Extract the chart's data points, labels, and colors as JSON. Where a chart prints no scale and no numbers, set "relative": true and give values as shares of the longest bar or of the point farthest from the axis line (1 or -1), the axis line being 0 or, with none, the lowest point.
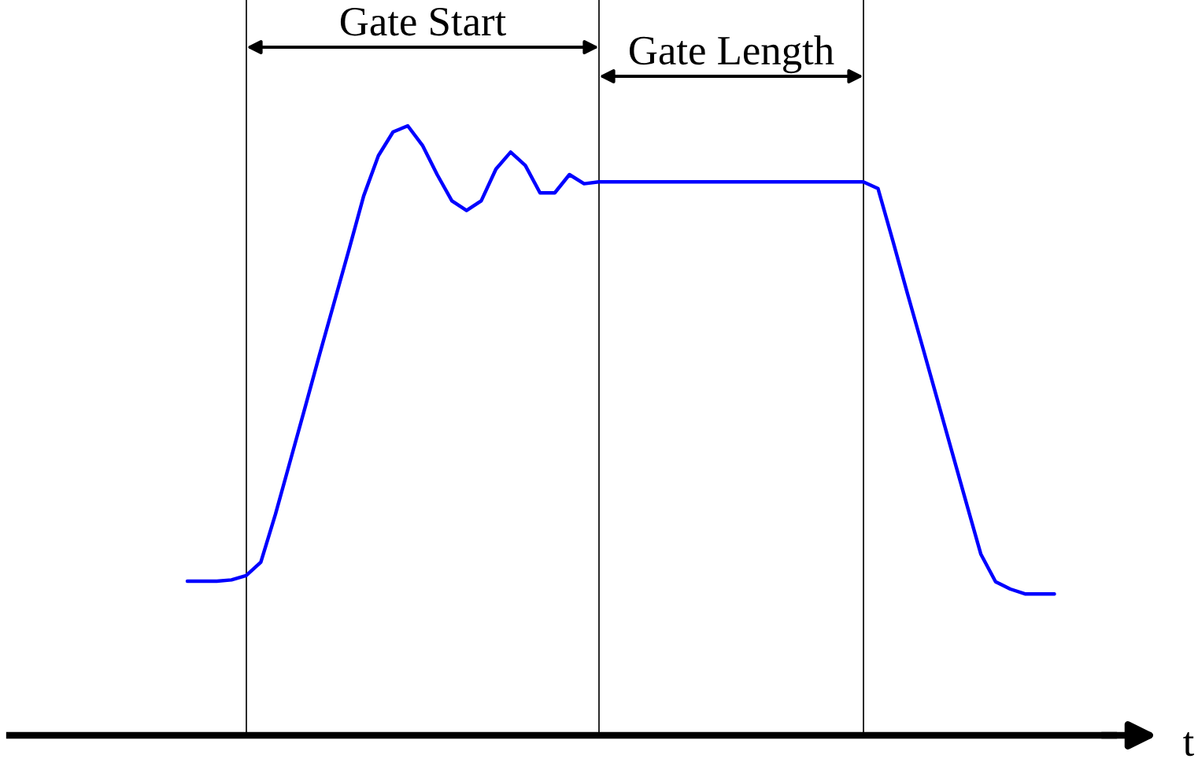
{
  "chart_data": {
    "type": "line",
    "relative": true,
    "xlabel": "t",
    "categories": [
      null,
      null,
      null,
      null,
      null,
      null,
      null,
      null,
      null,
      null,
      null,
      null,
      null,
      null,
      null,
      null,
      null,
      null,
      null,
      null,
      null,
      null,
      null,
      null,
      null,
      null,
      null,
      null,
      null,
      null,
      null,
      null,
      null,
      null,
      null,
      null,
      null,
      null,
      null,
      null,
      null,
      null,
      null,
      null,
      null,
      null,
      null,
      null,
      null,
      null,
      null,
      null,
      null,
      null,
      null,
      null,
      null,
      null,
      null,
      null
    ],
    "series": [
      {
        "color": "#0000ff",
        "values": [
          0.253,
          0.253,
          0.253,
          0.255,
          0.262,
          0.284,
          0.363,
          0.45,
          0.537,
          0.625,
          0.711,
          0.797,
          0.885,
          0.951,
          0.99,
          1.0,
          0.968,
          0.92,
          0.877,
          0.861,
          0.877,
          0.929,
          0.957,
          0.935,
          0.89,
          0.89,
          0.92,
          0.905,
          0.908,
          0.908,
          0.908,
          0.908,
          0.908,
          0.908,
          0.908,
          0.908,
          0.908,
          0.908,
          0.908,
          0.908,
          0.908,
          0.908,
          0.908,
          0.908,
          0.908,
          0.908,
          0.908,
          0.897,
          0.812,
          0.725,
          0.64,
          0.554,
          0.468,
          0.382,
          0.297,
          0.252,
          0.24,
          0.232,
          0.232,
          0.232
        ]
      }
    ],
    "annotations": [
      "Gate Start",
      "Gate Length"
    ],
    "line_style": "solid",
    "marker": "none",
    "grid": "x",
    "legend": false
  }
}
